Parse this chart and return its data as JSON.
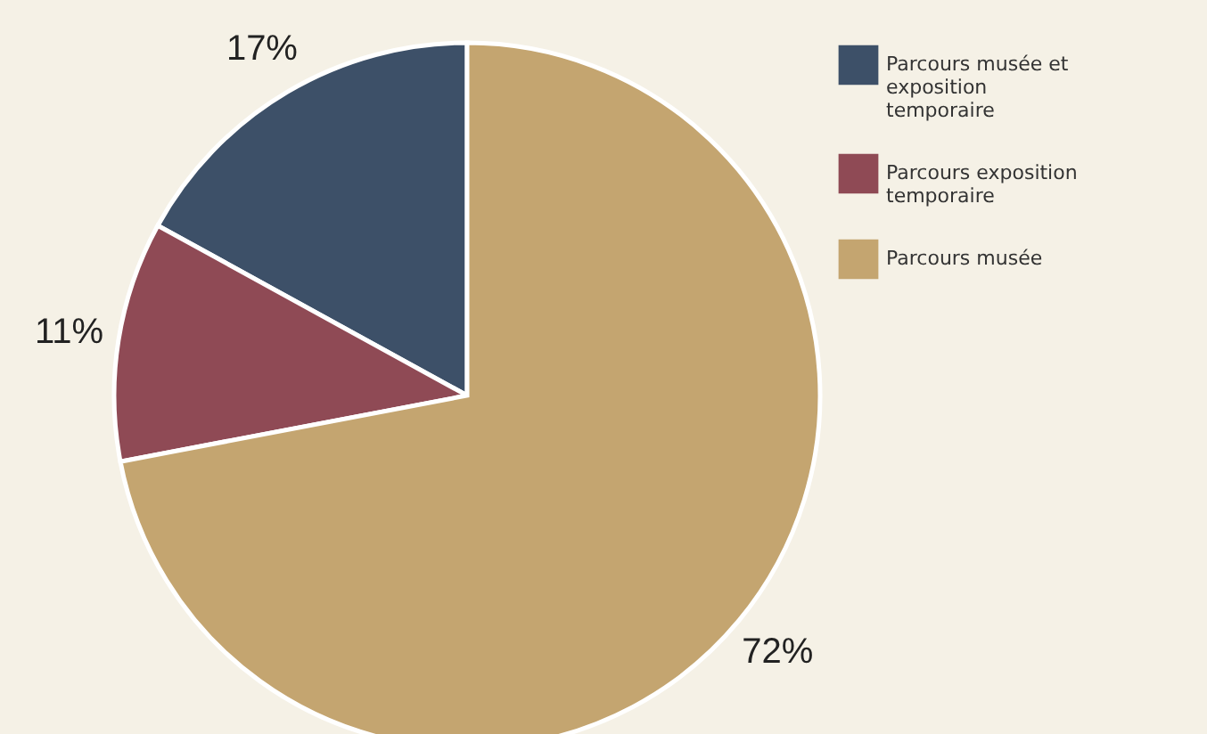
{
  "chart_data": {
    "type": "pie",
    "categories": [
      "Parcours musée et exposition temporaire",
      "Parcours exposition temporaire",
      "Parcours musée"
    ],
    "values": [
      17,
      11,
      72
    ],
    "colors": [
      "#3d5068",
      "#8f4a55",
      "#c4a570"
    ],
    "value_labels": [
      "17%",
      "11%",
      "72%"
    ],
    "legend": "top right"
  }
}
